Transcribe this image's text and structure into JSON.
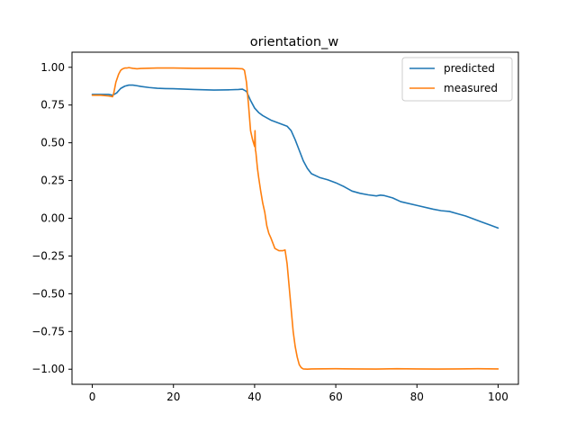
{
  "chart_data": {
    "type": "line",
    "title": "orientation_w",
    "xlabel": "",
    "ylabel": "",
    "xlim": [
      -5,
      105
    ],
    "ylim": [
      -1.1,
      1.1
    ],
    "xticks": [
      0,
      20,
      40,
      60,
      80,
      100
    ],
    "yticks": [
      1.0,
      0.75,
      0.5,
      0.25,
      0.0,
      -0.25,
      -0.5,
      -0.75,
      -1.0
    ],
    "ytick_labels": [
      "1.00",
      "0.75",
      "0.50",
      "0.25",
      "0.00",
      "−0.25",
      "−0.50",
      "−0.75",
      "−1.00"
    ],
    "grid": false,
    "legend_position": "top-right",
    "series": [
      {
        "name": "predicted",
        "color": "#1f77b4",
        "x": [
          0,
          2,
          4,
          5,
          6,
          7,
          8,
          9,
          10,
          11,
          12,
          14,
          16,
          18,
          20,
          25,
          30,
          34,
          36,
          37,
          38,
          39,
          40,
          41,
          42,
          44,
          46,
          48,
          49,
          50,
          51,
          52,
          53,
          54,
          56,
          58,
          60,
          62,
          64,
          66,
          68,
          70,
          71,
          72,
          74,
          76,
          80,
          84,
          86,
          88,
          90,
          92,
          94,
          96,
          98,
          100
        ],
        "y": [
          0.82,
          0.82,
          0.82,
          0.815,
          0.83,
          0.86,
          0.875,
          0.882,
          0.882,
          0.878,
          0.873,
          0.866,
          0.861,
          0.859,
          0.858,
          0.853,
          0.849,
          0.851,
          0.853,
          0.855,
          0.84,
          0.78,
          0.73,
          0.7,
          0.68,
          0.65,
          0.63,
          0.61,
          0.58,
          0.52,
          0.45,
          0.38,
          0.33,
          0.295,
          0.27,
          0.255,
          0.235,
          0.21,
          0.18,
          0.165,
          0.155,
          0.148,
          0.153,
          0.15,
          0.135,
          0.11,
          0.085,
          0.06,
          0.05,
          0.045,
          0.03,
          0.015,
          -0.005,
          -0.025,
          -0.045,
          -0.065
        ]
      },
      {
        "name": "measured",
        "color": "#ff7f0e",
        "x": [
          0,
          2,
          4,
          5,
          5.3,
          5.8,
          6.5,
          7,
          7.5,
          8,
          8.5,
          9,
          10,
          11,
          12,
          16,
          20,
          25,
          30,
          35,
          37,
          37.5,
          38,
          38.5,
          39,
          39.5,
          40,
          40.1,
          40.15,
          40.2,
          40.3,
          40.7,
          41,
          41.5,
          42,
          42.5,
          43,
          43.5,
          44,
          45,
          46,
          47,
          47.5,
          48,
          48.5,
          49,
          49.5,
          50,
          50.5,
          51,
          51.5,
          52,
          53,
          54,
          60,
          65,
          70,
          75,
          80,
          85,
          90,
          95,
          100
        ],
        "y": [
          0.815,
          0.815,
          0.81,
          0.805,
          0.83,
          0.9,
          0.955,
          0.98,
          0.99,
          0.995,
          0.995,
          0.998,
          0.993,
          0.99,
          0.992,
          0.995,
          0.995,
          0.993,
          0.993,
          0.992,
          0.99,
          0.98,
          0.9,
          0.75,
          0.58,
          0.52,
          0.475,
          0.58,
          0.52,
          0.45,
          0.44,
          0.33,
          0.27,
          0.18,
          0.1,
          0.04,
          -0.05,
          -0.1,
          -0.13,
          -0.2,
          -0.215,
          -0.215,
          -0.21,
          -0.3,
          -0.45,
          -0.6,
          -0.75,
          -0.85,
          -0.92,
          -0.97,
          -0.99,
          -0.998,
          -1.0,
          -0.998,
          -0.997,
          -0.998,
          -0.999,
          -0.997,
          -0.998,
          -0.999,
          -0.998,
          -0.997,
          -0.998
        ]
      }
    ]
  }
}
